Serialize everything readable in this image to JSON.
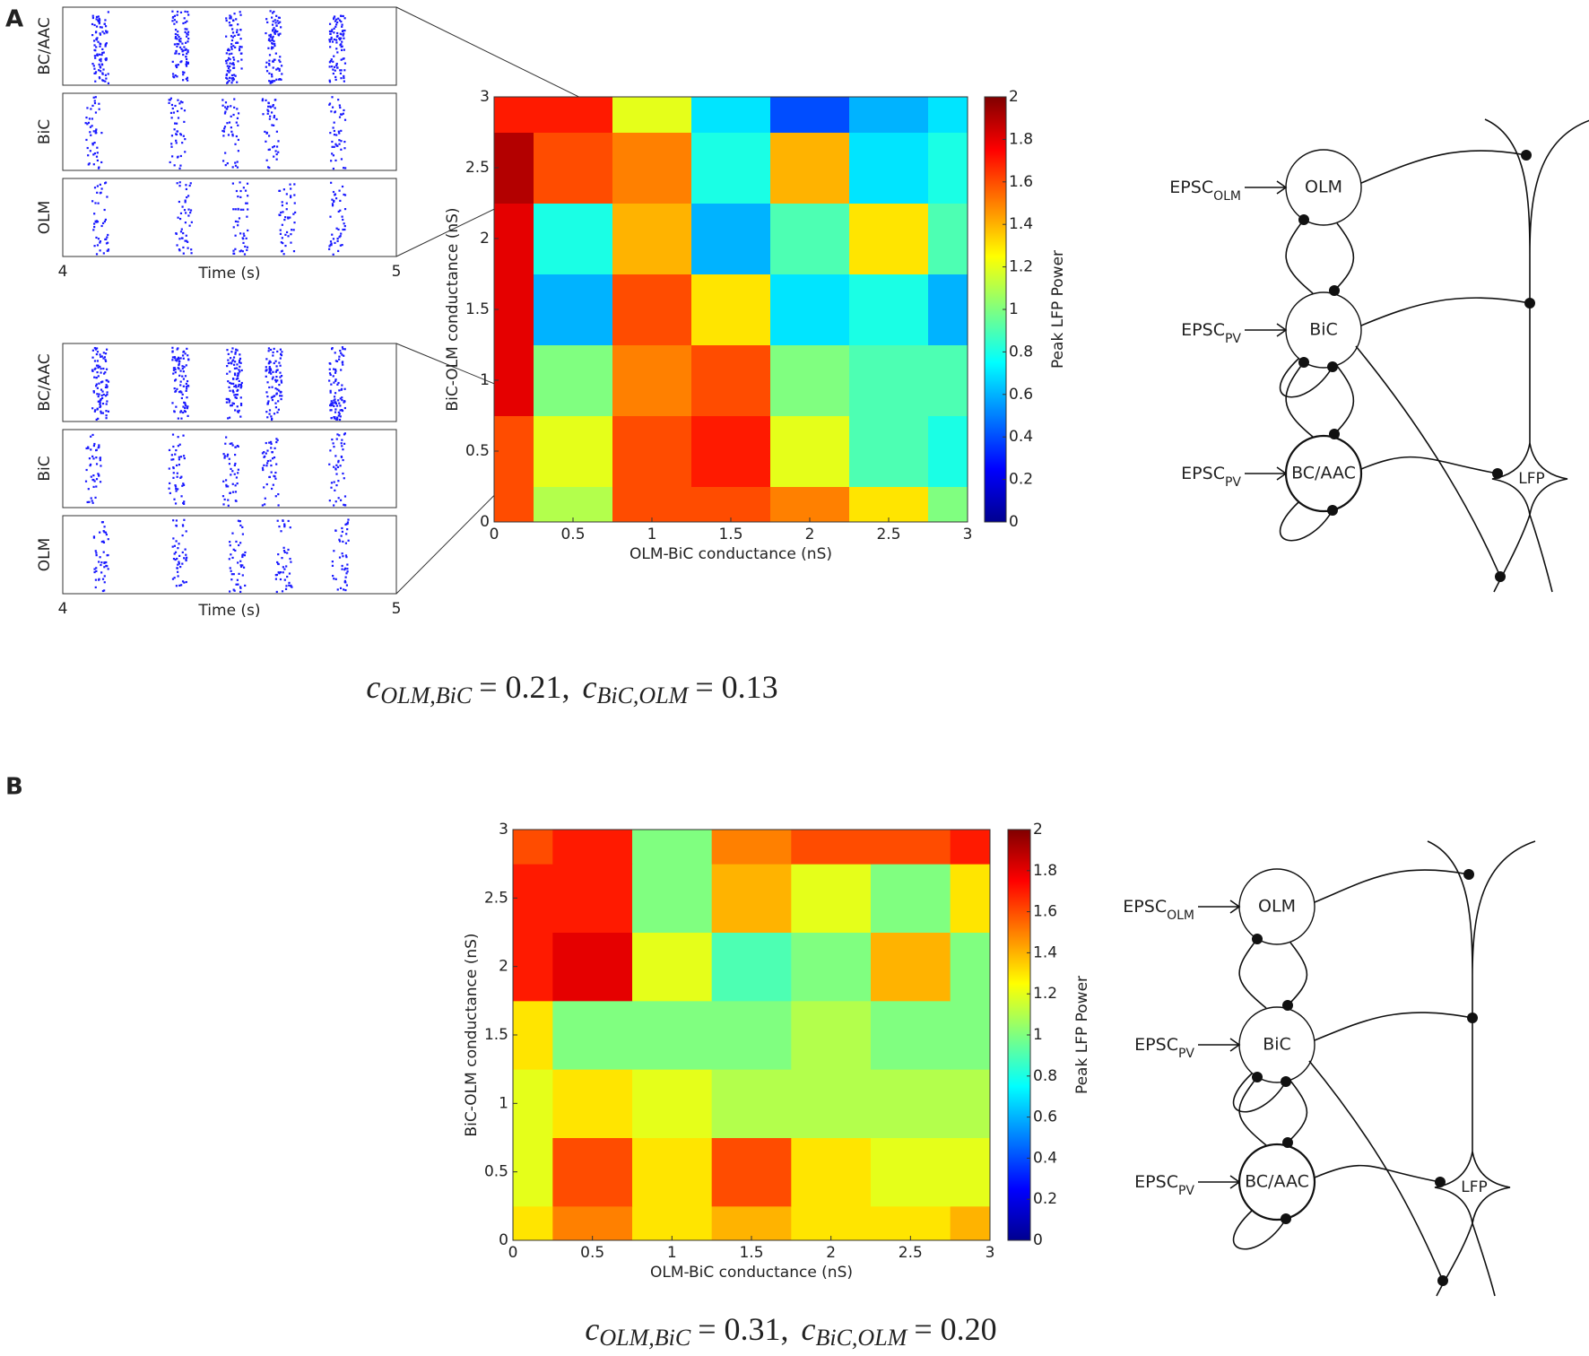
{
  "panel_labels": [
    "A",
    "B"
  ],
  "chart_data": [
    {
      "type": "heatmap",
      "xlabel": "OLM-BiC conductance (nS)",
      "ylabel": "BiC-OLM conductance (nS)",
      "colorbar_label": "Peak LFP Power",
      "colormap": "jet",
      "x": [
        0,
        0.5,
        1,
        1.5,
        2,
        2.5,
        3
      ],
      "y": [
        0,
        0.5,
        1,
        1.5,
        2,
        2.5,
        3
      ],
      "z": [
        [
          1.6,
          1.1,
          1.6,
          1.6,
          1.5,
          1.3,
          1.0
        ],
        [
          1.6,
          1.2,
          1.6,
          1.7,
          1.2,
          0.9,
          0.8
        ],
        [
          1.8,
          1.0,
          1.5,
          1.6,
          1.0,
          0.9,
          0.9
        ],
        [
          1.8,
          0.6,
          1.6,
          1.3,
          0.7,
          0.8,
          0.6
        ],
        [
          1.8,
          0.8,
          1.4,
          0.6,
          0.9,
          1.3,
          0.9
        ],
        [
          1.9,
          1.6,
          1.5,
          0.8,
          1.4,
          0.7,
          0.8
        ],
        [
          1.7,
          1.7,
          1.2,
          0.7,
          0.4,
          0.6,
          0.7
        ]
      ],
      "xlim": [
        0,
        3
      ],
      "ylim": [
        0,
        3
      ],
      "xticks": [
        0,
        0.5,
        1,
        1.5,
        2,
        2.5,
        3
      ],
      "yticks": [
        0,
        0.5,
        1,
        1.5,
        2,
        2.5,
        3
      ],
      "clim": [
        0,
        2
      ],
      "cticks": [
        0,
        0.2,
        0.4,
        0.6,
        0.8,
        1,
        1.2,
        1.4,
        1.6,
        1.8,
        2
      ]
    },
    {
      "type": "heatmap",
      "xlabel": "OLM-BiC conductance (nS)",
      "ylabel": "BiC-OLM conductance (nS)",
      "colorbar_label": "Peak LFP Power",
      "colormap": "jet",
      "x": [
        0,
        0.5,
        1,
        1.5,
        2,
        2.5,
        3
      ],
      "y": [
        0,
        0.5,
        1,
        1.5,
        2,
        2.5,
        3
      ],
      "z": [
        [
          1.3,
          1.5,
          1.3,
          1.4,
          1.3,
          1.3,
          1.4
        ],
        [
          1.2,
          1.6,
          1.3,
          1.6,
          1.3,
          1.2,
          1.2
        ],
        [
          1.2,
          1.3,
          1.2,
          1.1,
          1.1,
          1.1,
          1.1
        ],
        [
          1.3,
          1.0,
          1.0,
          1.0,
          1.1,
          1.0,
          1.0
        ],
        [
          1.7,
          1.8,
          1.2,
          0.9,
          1.0,
          1.4,
          1.0
        ],
        [
          1.7,
          1.7,
          1.0,
          1.4,
          1.2,
          1.0,
          1.3
        ],
        [
          1.6,
          1.7,
          1.0,
          1.5,
          1.6,
          1.6,
          1.7
        ]
      ],
      "xlim": [
        0,
        3
      ],
      "ylim": [
        0,
        3
      ],
      "xticks": [
        0,
        0.5,
        1,
        1.5,
        2,
        2.5,
        3
      ],
      "yticks": [
        0,
        0.5,
        1,
        1.5,
        2,
        2.5,
        3
      ],
      "clim": [
        0,
        2
      ],
      "cticks": [
        0,
        0.2,
        0.4,
        0.6,
        0.8,
        1,
        1.2,
        1.4,
        1.6,
        1.8,
        2
      ]
    },
    {
      "type": "raster",
      "xlabel": "Time (s)",
      "xlim": [
        4,
        5
      ],
      "xticks": [
        4,
        5
      ],
      "color": "#1a1aff",
      "rows": [
        {
          "name": "BC/AAC",
          "bursts": [
            4.11,
            4.35,
            4.51,
            4.63,
            4.82
          ]
        },
        {
          "name": "BiC",
          "bursts": [
            4.09,
            4.34,
            4.5,
            4.62,
            4.82
          ]
        },
        {
          "name": "OLM",
          "bursts": [
            4.11,
            4.36,
            4.53,
            4.67,
            4.82
          ]
        }
      ]
    },
    {
      "type": "raster",
      "xlabel": "Time (s)",
      "xlim": [
        4,
        5
      ],
      "xticks": [
        4,
        5
      ],
      "color": "#1a1aff",
      "rows": [
        {
          "name": "BC/AAC",
          "bursts": [
            4.11,
            4.35,
            4.51,
            4.63,
            4.82
          ]
        },
        {
          "name": "BiC",
          "bursts": [
            4.09,
            4.34,
            4.5,
            4.62,
            4.82
          ]
        },
        {
          "name": "OLM",
          "bursts": [
            4.11,
            4.35,
            4.52,
            4.66,
            4.83
          ]
        }
      ]
    }
  ],
  "formulas": [
    {
      "lhs1": "c",
      "sub1": "OLM,BiC",
      "rhs1": "= 0.21,",
      "lhs2": "c",
      "sub2": "BiC,OLM",
      "rhs2": "= 0.13"
    },
    {
      "lhs1": "c",
      "sub1": "OLM,BiC",
      "rhs1": "= 0.31,",
      "lhs2": "c",
      "sub2": "BiC,OLM",
      "rhs2": "= 0.20"
    }
  ],
  "diagrams": [
    {
      "nodes": [
        "OLM",
        "BiC",
        "BC/AAC"
      ],
      "output": "LFP",
      "inputs": [
        {
          "main": "EPSC",
          "sub": "OLM"
        },
        {
          "main": "EPSC",
          "sub": "PV"
        },
        {
          "main": "EPSC",
          "sub": "PV"
        }
      ]
    },
    {
      "nodes": [
        "OLM",
        "BiC",
        "BC/AAC"
      ],
      "output": "LFP",
      "inputs": [
        {
          "main": "EPSC",
          "sub": "OLM"
        },
        {
          "main": "EPSC",
          "sub": "PV"
        },
        {
          "main": "EPSC",
          "sub": "PV"
        }
      ]
    }
  ]
}
